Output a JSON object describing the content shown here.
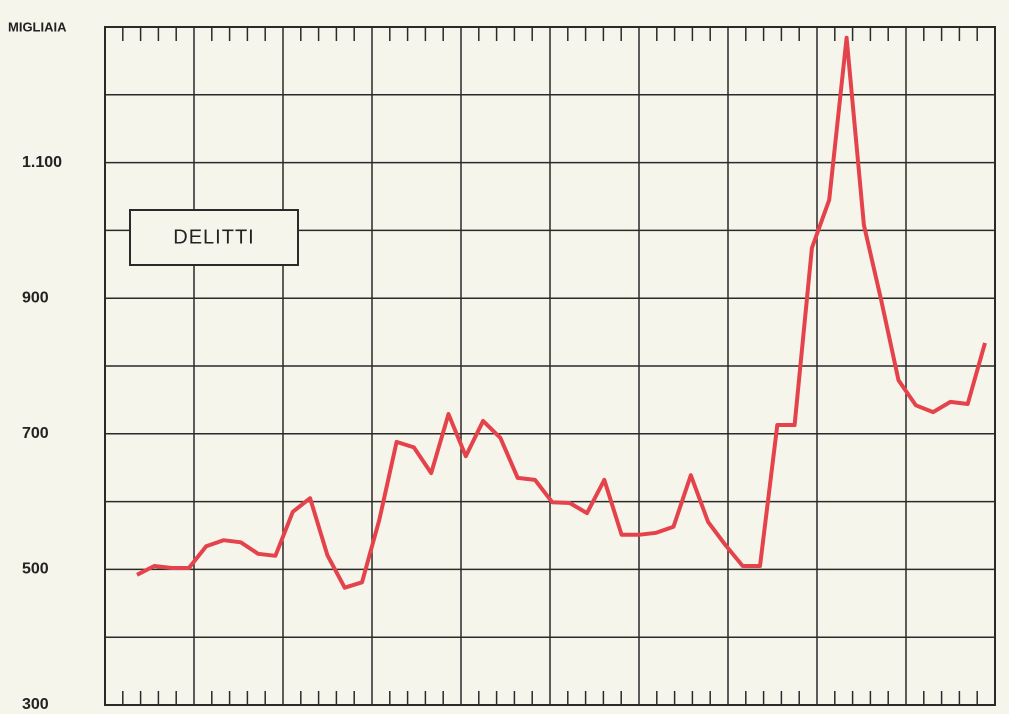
{
  "chart_data": {
    "type": "line",
    "y_label": "MIGLIAIA",
    "annotation": "DELITTI",
    "ylim": [
      300,
      1300
    ],
    "yticks": [
      300,
      500,
      700,
      {
        "value": 1100,
        "label": "1.100"
      },
      900
    ],
    "minor_yticks": [
      400,
      600,
      800,
      1000,
      1200
    ],
    "grid": true,
    "color": "#e5434b",
    "values": [
      492,
      505,
      502,
      502,
      534,
      543,
      540,
      523,
      520,
      585,
      605,
      521,
      473,
      481,
      573,
      688,
      680,
      642,
      729,
      667,
      719,
      694,
      635,
      632,
      599,
      598,
      583,
      632,
      551,
      551,
      554,
      563,
      639,
      570,
      536,
      505,
      505,
      713,
      713,
      974,
      1045,
      1284,
      1008,
      897,
      779,
      742,
      732,
      747,
      744,
      834
    ]
  }
}
